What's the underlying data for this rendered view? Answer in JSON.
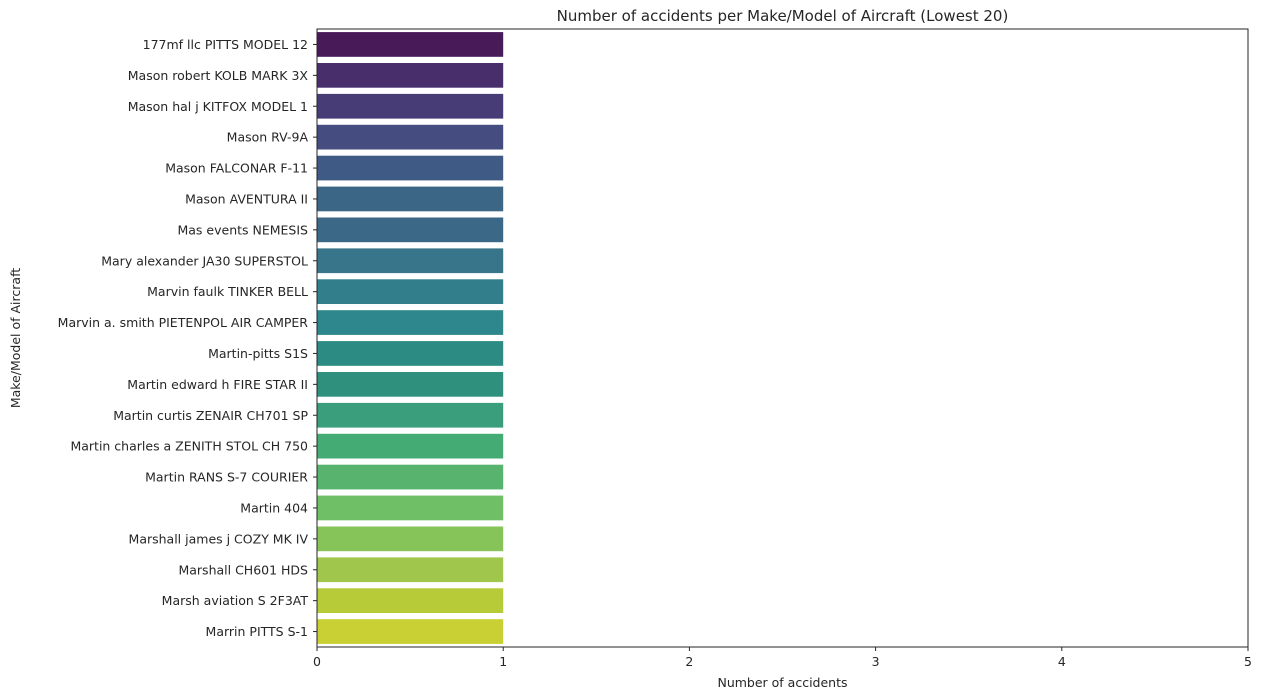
{
  "chart_data": {
    "type": "bar",
    "orientation": "horizontal",
    "title": "Number of accidents per Make/Model of Aircraft (Lowest 20)",
    "xlabel": "Number of accidents",
    "ylabel": "Make/Model of Aircraft",
    "xlim": [
      0,
      5
    ],
    "xticks": [
      "0",
      "1",
      "2",
      "3",
      "4",
      "5"
    ],
    "grid": false,
    "legend": "none",
    "colormap": "viridis",
    "categories": [
      "177mf llc PITTS MODEL 12",
      "Mason robert KOLB MARK 3X",
      "Mason hal j KITFOX MODEL 1",
      "Mason RV-9A",
      "Mason FALCONAR F-11",
      "Mason AVENTURA II",
      "Mas events NEMESIS",
      "Mary alexander JA30 SUPERSTOL",
      "Marvin faulk TINKER BELL",
      "Marvin a. smith PIETENPOL AIR CAMPER",
      "Martin-pitts S1S",
      "Martin edward h FIRE STAR II",
      "Martin curtis ZENAIR CH701 SP",
      "Martin charles a ZENITH STOL CH 750",
      "Martin RANS S-7 COURIER",
      "Martin 404",
      "Marshall james j COZY MK IV",
      "Marshall CH601 HDS",
      "Marsh aviation S 2F3AT",
      "Marrin PITTS S-1"
    ],
    "values": [
      1,
      1,
      1,
      1,
      1,
      1,
      1,
      1,
      1,
      1,
      1,
      1,
      1,
      1,
      1,
      1,
      1,
      1,
      1,
      1
    ],
    "colors": [
      "#481a58",
      "#482f6c",
      "#473c75",
      "#444c80",
      "#3f5a84",
      "#3b6686",
      "#3a6886",
      "#38748a",
      "#327f8b",
      "#2e878c",
      "#2c8b82",
      "#2f907e",
      "#3a9e7d",
      "#45ab74",
      "#57b36d",
      "#6fbf66",
      "#86c45a",
      "#a0c74b",
      "#b7cb39",
      "#c8d034"
    ]
  }
}
